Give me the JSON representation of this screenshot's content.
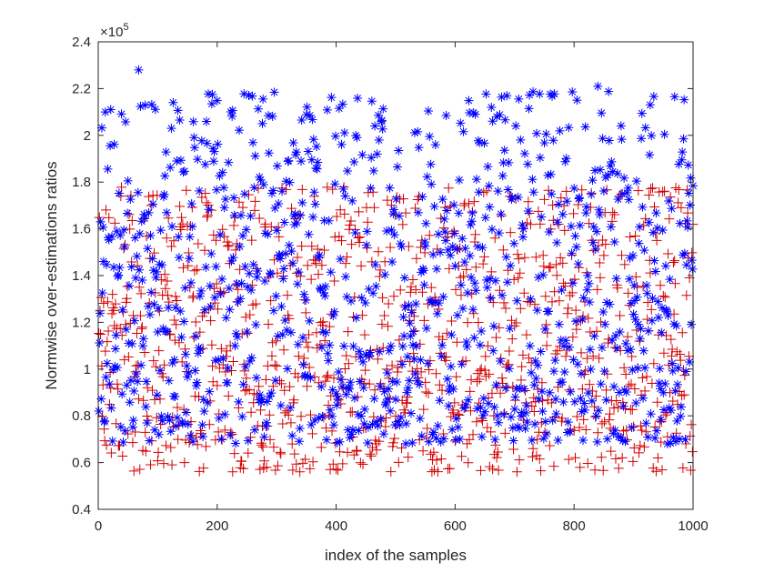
{
  "chart_data": {
    "type": "scatter",
    "title": "",
    "xlabel": "index of the samples",
    "ylabel": "Normwise over-estimations ratios",
    "exponent_label": "×10",
    "exponent_power": "5",
    "xlim": [
      0,
      1000
    ],
    "ylim": [
      0.4,
      2.4
    ],
    "x_ticks": [
      0,
      200,
      400,
      600,
      800,
      1000
    ],
    "x_tick_labels": [
      "0",
      "200",
      "400",
      "600",
      "800",
      "1000"
    ],
    "y_ticks": [
      0.4,
      0.6,
      0.8,
      1.0,
      1.2,
      1.4,
      1.6,
      1.8,
      2.0,
      2.2,
      2.4
    ],
    "y_tick_labels": [
      "0.4",
      "0.6",
      "0.8",
      "1",
      "1.2",
      "1.4",
      "1.6",
      "1.8",
      "2",
      "2.2",
      "2.4"
    ],
    "grid": false,
    "series": [
      {
        "name": "series 1 (blue asterisk)",
        "marker": "asterisk",
        "color": "#0000ff",
        "n_points": 1000,
        "value_range": [
          0.68,
          2.28
        ],
        "notable_points": [
          {
            "x": 68,
            "y": 2.28
          },
          {
            "x": 840,
            "y": 2.21
          },
          {
            "x": 12,
            "y": 2.1
          }
        ]
      },
      {
        "name": "series 2 (red plus)",
        "marker": "plus",
        "color": "#d40000",
        "n_points": 1000,
        "value_range": [
          0.56,
          1.78
        ]
      }
    ]
  }
}
